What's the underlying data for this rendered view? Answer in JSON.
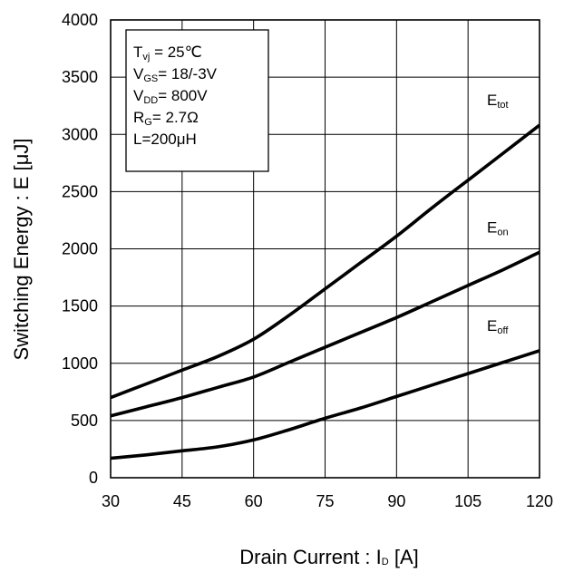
{
  "chart_data": {
    "type": "line",
    "xlabel": "Drain Current : I",
    "xlabel_sub": "D",
    "xlabel_unit": " [A]",
    "ylabel": "Switching Energy : E [μJ]",
    "xlim": [
      30,
      120
    ],
    "ylim": [
      0,
      4000
    ],
    "x_ticks": [
      30,
      45,
      60,
      75,
      90,
      105,
      120
    ],
    "y_ticks": [
      0,
      500,
      1000,
      1500,
      2000,
      2500,
      3000,
      3500,
      4000
    ],
    "grid": true,
    "conditions": [
      {
        "main": "T",
        "sub": "vj",
        "rest": " = 25℃"
      },
      {
        "main": "V",
        "sub": "GS",
        "rest": "= 18/-3V"
      },
      {
        "main": "V",
        "sub": "DD",
        "rest": "= 800V"
      },
      {
        "main": "R",
        "sub": "G",
        "rest": "= 2.7Ω"
      },
      {
        "main": "L=200μH",
        "sub": "",
        "rest": ""
      }
    ],
    "series": [
      {
        "name": "E",
        "name_sub": "tot",
        "x": [
          30,
          37.5,
          45,
          52.5,
          60,
          67.5,
          75,
          82.5,
          90,
          97.5,
          105,
          112.5,
          120
        ],
        "values": [
          700,
          820,
          940,
          1060,
          1210,
          1420,
          1650,
          1880,
          2110,
          2360,
          2600,
          2840,
          3080
        ]
      },
      {
        "name": "E",
        "name_sub": "on",
        "x": [
          30,
          37.5,
          45,
          52.5,
          60,
          67.5,
          75,
          82.5,
          90,
          97.5,
          105,
          112.5,
          120
        ],
        "values": [
          540,
          620,
          700,
          790,
          880,
          1010,
          1140,
          1270,
          1400,
          1540,
          1680,
          1820,
          1970
        ]
      },
      {
        "name": "E",
        "name_sub": "off",
        "x": [
          30,
          37.5,
          45,
          52.5,
          60,
          67.5,
          75,
          82.5,
          90,
          97.5,
          105,
          112.5,
          120
        ],
        "values": [
          170,
          200,
          235,
          270,
          330,
          420,
          520,
          610,
          710,
          810,
          910,
          1010,
          1110
        ]
      }
    ]
  }
}
